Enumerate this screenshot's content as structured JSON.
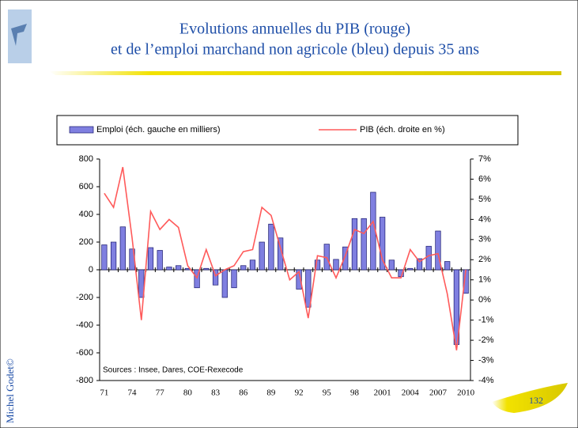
{
  "slide": {
    "title_lines": [
      "Evolutions annuelles du PIB  (rouge)",
      "et de l’emploi marchand non agricole (bleu) depuis 35 ans"
    ],
    "author": "Michel Godet©",
    "page_number": "132"
  },
  "chart_data": {
    "type": "bar",
    "categories": [
      "71",
      null,
      null,
      "74",
      null,
      null,
      "77",
      null,
      null,
      "80",
      null,
      null,
      "83",
      null,
      null,
      "86",
      null,
      null,
      "89",
      null,
      null,
      "92",
      null,
      null,
      "95",
      null,
      null,
      "98",
      null,
      null,
      "2001",
      null,
      null,
      "2004",
      null,
      null,
      "2007",
      null,
      null,
      "2010"
    ],
    "series": [
      {
        "name": "Emploi (éch. gauche en milliers)",
        "color": "#7f7fe0",
        "values": [
          180,
          200,
          310,
          150,
          -200,
          160,
          140,
          20,
          30,
          10,
          -130,
          10,
          -110,
          -200,
          -130,
          30,
          70,
          200,
          330,
          230,
          0,
          -140,
          -270,
          70,
          185,
          75,
          165,
          370,
          370,
          560,
          380,
          70,
          -50,
          10,
          80,
          170,
          280,
          60,
          -540,
          -170
        ]
      },
      {
        "name": "PIB (éch. droite en %)",
        "color": "#ff5a5a",
        "axis": "y2",
        "values": [
          5.3,
          4.6,
          6.6,
          3.1,
          -1.0,
          4.4,
          3.5,
          4.0,
          3.6,
          1.7,
          1.1,
          2.5,
          1.2,
          1.5,
          1.7,
          2.4,
          2.5,
          4.6,
          4.2,
          2.6,
          1.0,
          1.4,
          -0.9,
          2.2,
          2.1,
          1.1,
          2.2,
          3.5,
          3.3,
          3.9,
          2.0,
          1.1,
          1.1,
          2.5,
          1.9,
          2.2,
          2.3,
          0.3,
          -2.5,
          1.5
        ]
      }
    ],
    "ylim": [
      -800,
      800
    ],
    "yticks": [
      800,
      600,
      400,
      200,
      0,
      -200,
      -400,
      -600,
      -800
    ],
    "y2lim": [
      -4,
      7
    ],
    "y2ticks": [
      {
        "value": 7,
        "label": "7%"
      },
      {
        "value": 6,
        "label": "6%"
      },
      {
        "value": 5,
        "label": "5%"
      },
      {
        "value": 4,
        "label": "4%"
      },
      {
        "value": 3,
        "label": "3%"
      },
      {
        "value": 2,
        "label": "2%"
      },
      {
        "value": 1,
        "label": "1%"
      },
      {
        "value": 0,
        "label": "0%"
      },
      {
        "value": -1,
        "label": "-1%"
      },
      {
        "value": -2,
        "label": "-2%"
      },
      {
        "value": -3,
        "label": "-3%"
      },
      {
        "value": -4,
        "label": "-4%"
      }
    ],
    "annotation": "Sources : Insee, Dares, COE-Rexecode",
    "grid": false,
    "legend": "top"
  }
}
